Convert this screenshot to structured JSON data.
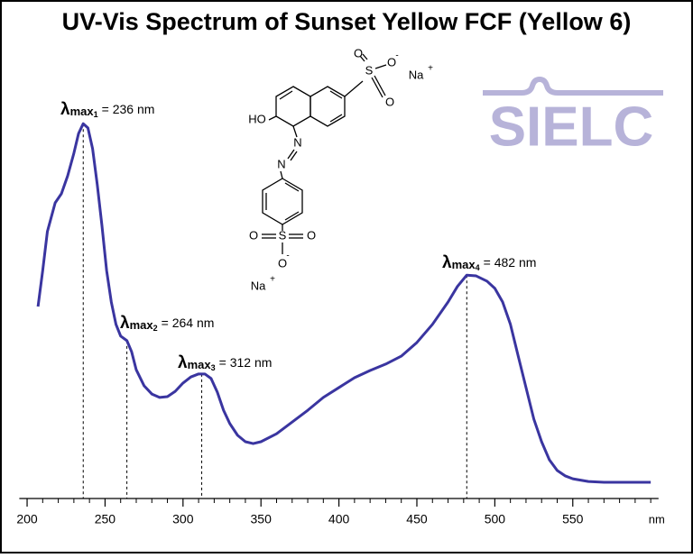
{
  "chart_data": {
    "type": "line",
    "title": "UV-Vis Spectrum of Sunset Yellow FCF (Yellow 6)",
    "x_label": "nm",
    "xlim": [
      195,
      605
    ],
    "xticks": [
      200,
      250,
      300,
      350,
      400,
      450,
      500,
      550
    ],
    "xminorticks": [
      210,
      220,
      230,
      240,
      260,
      270,
      280,
      290,
      310,
      320,
      330,
      340,
      360,
      370,
      380,
      390,
      410,
      420,
      430,
      440,
      460,
      470,
      480,
      490,
      510,
      520,
      530,
      540,
      560,
      570,
      580,
      590,
      600
    ],
    "ylim": [
      0,
      1
    ],
    "grid": false,
    "series": [
      {
        "color": "#3a35a0",
        "x": [
          207,
          210,
          213,
          218,
          222,
          226,
          230,
          233,
          236,
          239,
          242,
          245,
          248,
          251,
          254,
          257,
          260,
          264,
          267,
          270,
          275,
          280,
          285,
          290,
          295,
          300,
          305,
          310,
          314,
          318,
          322,
          326,
          330,
          335,
          340,
          345,
          350,
          360,
          370,
          380,
          390,
          400,
          410,
          420,
          430,
          440,
          450,
          460,
          470,
          476,
          482,
          488,
          495,
          500,
          505,
          510,
          515,
          520,
          525,
          530,
          535,
          540,
          545,
          550,
          560,
          570,
          580,
          590,
          600
        ],
        "values": [
          0.507,
          0.602,
          0.705,
          0.781,
          0.805,
          0.852,
          0.912,
          0.964,
          0.99,
          0.979,
          0.924,
          0.829,
          0.721,
          0.602,
          0.519,
          0.46,
          0.429,
          0.417,
          0.388,
          0.34,
          0.298,
          0.276,
          0.267,
          0.269,
          0.283,
          0.305,
          0.321,
          0.329,
          0.329,
          0.317,
          0.281,
          0.233,
          0.198,
          0.167,
          0.15,
          0.145,
          0.15,
          0.171,
          0.202,
          0.233,
          0.267,
          0.293,
          0.319,
          0.338,
          0.355,
          0.376,
          0.412,
          0.46,
          0.519,
          0.56,
          0.59,
          0.588,
          0.574,
          0.555,
          0.519,
          0.46,
          0.376,
          0.293,
          0.21,
          0.15,
          0.102,
          0.074,
          0.06,
          0.052,
          0.045,
          0.043,
          0.043,
          0.043,
          0.043
        ]
      }
    ],
    "annotations": [
      {
        "symbol": "λ",
        "sub": "max",
        "index": "1",
        "text": "= 236 nm",
        "x": 236,
        "y": 0.99
      },
      {
        "symbol": "λ",
        "sub": "max",
        "index": "2",
        "text": "= 264 nm",
        "x": 264,
        "y": 0.417
      },
      {
        "symbol": "λ",
        "sub": "max",
        "index": "3",
        "text": "= 312 nm",
        "x": 312,
        "y": 0.329
      },
      {
        "symbol": "λ",
        "sub": "max",
        "index": "4",
        "text": "= 482 nm",
        "x": 482,
        "y": 0.59
      }
    ],
    "logo": "SIELC",
    "structure_labels": [
      "HO",
      "N",
      "N",
      "S",
      "O",
      "O",
      "O",
      "-",
      "Na",
      "+",
      "S",
      "O",
      "O",
      "O",
      "-",
      "Na",
      "+"
    ]
  }
}
